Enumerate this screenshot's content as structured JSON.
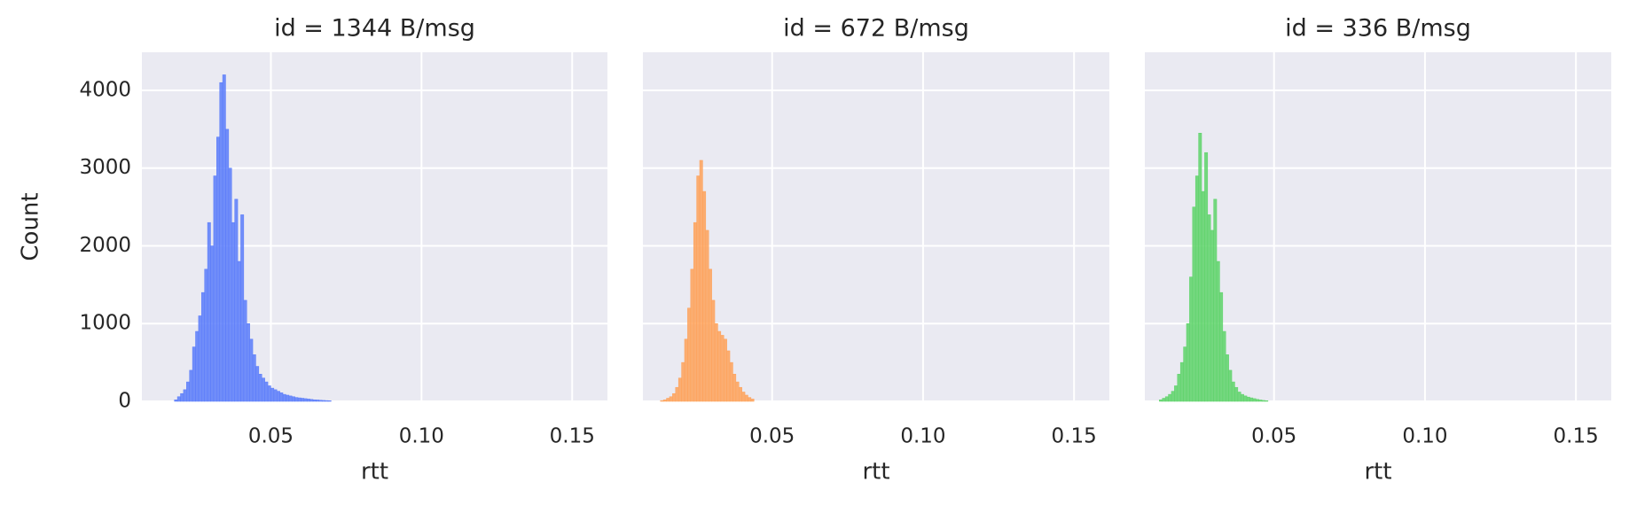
{
  "chart_data": [
    {
      "type": "histogram",
      "title": "id = 1344 B/msg",
      "xlabel": "rtt",
      "ylabel": "Count",
      "color": "#5b7cfa",
      "bins": [
        0.018,
        0.019,
        0.02,
        0.021,
        0.022,
        0.023,
        0.024,
        0.025,
        0.026,
        0.027,
        0.028,
        0.029,
        0.03,
        0.031,
        0.032,
        0.033,
        0.034,
        0.035,
        0.036,
        0.037,
        0.038,
        0.039,
        0.04,
        0.041,
        0.042,
        0.043,
        0.044,
        0.045,
        0.046,
        0.047,
        0.048,
        0.049,
        0.05,
        0.051,
        0.052,
        0.053,
        0.054,
        0.055,
        0.056,
        0.057,
        0.058,
        0.059,
        0.06,
        0.061,
        0.062,
        0.063,
        0.064,
        0.065,
        0.066,
        0.067,
        0.068,
        0.069,
        0.07
      ],
      "values": [
        20,
        60,
        100,
        150,
        250,
        400,
        700,
        900,
        1100,
        1400,
        1700,
        2300,
        2000,
        2900,
        3400,
        4100,
        4200,
        3500,
        3000,
        2300,
        2600,
        1800,
        2400,
        1300,
        1000,
        800,
        600,
        450,
        350,
        300,
        250,
        200,
        170,
        150,
        130,
        110,
        90,
        80,
        70,
        60,
        50,
        45,
        40,
        35,
        30,
        25,
        20,
        18,
        15,
        12,
        10,
        8
      ],
      "xlim": [
        0.0072,
        0.1617
      ],
      "xticks": [
        0.05,
        {
          "value": 0.1,
          "label": "0.10"
        },
        0.15
      ],
      "ylim": [
        0,
        4490
      ],
      "yticks": [
        0,
        1000,
        2000,
        3000,
        4000
      ],
      "grid": true
    },
    {
      "type": "histogram",
      "title": "id = 672 B/msg",
      "xlabel": "rtt",
      "color": "#fea25a",
      "bins": [
        0.013,
        0.014,
        0.015,
        0.016,
        0.017,
        0.018,
        0.019,
        0.02,
        0.021,
        0.022,
        0.023,
        0.024,
        0.025,
        0.026,
        0.027,
        0.028,
        0.029,
        0.03,
        0.031,
        0.032,
        0.033,
        0.034,
        0.035,
        0.036,
        0.037,
        0.038,
        0.039,
        0.04,
        0.041,
        0.042,
        0.043,
        0.044
      ],
      "values": [
        10,
        20,
        40,
        60,
        100,
        180,
        300,
        500,
        800,
        1200,
        1700,
        2300,
        2900,
        3100,
        2700,
        2200,
        1700,
        1300,
        1000,
        900,
        850,
        800,
        650,
        500,
        350,
        250,
        180,
        120,
        80,
        50,
        30
      ],
      "xlim": [
        0.0072,
        0.1617
      ],
      "xticks": [
        0.05,
        {
          "value": 0.1,
          "label": "0.10"
        },
        0.15
      ],
      "ylim": [
        0,
        4490
      ],
      "yticks": [
        0,
        1000,
        2000,
        3000,
        4000
      ],
      "grid": true
    },
    {
      "type": "histogram",
      "title": "id = 336 B/msg",
      "xlabel": "rtt",
      "color": "#5ed36a",
      "bins": [
        0.012,
        0.013,
        0.014,
        0.015,
        0.016,
        0.017,
        0.018,
        0.019,
        0.02,
        0.021,
        0.022,
        0.023,
        0.024,
        0.025,
        0.026,
        0.027,
        0.028,
        0.029,
        0.03,
        0.031,
        0.032,
        0.033,
        0.034,
        0.035,
        0.036,
        0.037,
        0.038,
        0.039,
        0.04,
        0.041,
        0.042,
        0.043,
        0.044,
        0.045,
        0.046,
        0.047,
        0.048
      ],
      "values": [
        20,
        40,
        60,
        90,
        130,
        200,
        350,
        500,
        700,
        1000,
        1600,
        2500,
        2900,
        3450,
        2700,
        3200,
        2400,
        2200,
        2600,
        1800,
        1400,
        900,
        600,
        400,
        250,
        180,
        120,
        90,
        70,
        55,
        45,
        35,
        25,
        18,
        12,
        8
      ],
      "xlim": [
        0.0072,
        0.1617
      ],
      "xticks": [
        0.05,
        {
          "value": 0.1,
          "label": "0.10"
        },
        0.15
      ],
      "ylim": [
        0,
        4490
      ],
      "yticks": [
        0,
        1000,
        2000,
        3000,
        4000
      ],
      "grid": true
    }
  ]
}
